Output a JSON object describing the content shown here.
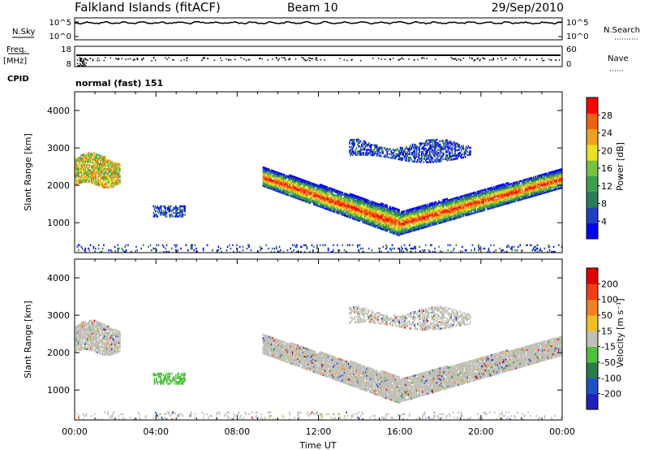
{
  "header": {
    "station": "Falkland Islands (fitACF)",
    "beam": "Beam 10",
    "date": "29/Sep/2010"
  },
  "colors": {
    "power": [
      "#0000ff",
      "#2040c0",
      "#2e7a5a",
      "#3aa050",
      "#78c040",
      "#e8e020",
      "#f0a020",
      "#f06010",
      "#ff0000"
    ],
    "velocity": [
      "#2020c0",
      "#2050c8",
      "#2a7a4a",
      "#50c040",
      "#c0c0b8",
      "#f0c020",
      "#f08020",
      "#f04010",
      "#e00000"
    ]
  },
  "chart_data": [
    {
      "type": "line",
      "panel": "noise",
      "left_label": "N.Sky",
      "right_label": "N.Search",
      "left_ticks": [
        "10^5",
        "10^0"
      ],
      "right_ticks": [
        "10^5",
        "10^0"
      ],
      "xlim": [
        "00:00",
        "24:00"
      ]
    },
    {
      "type": "line",
      "panel": "frequency",
      "left_label_1": "Freq.",
      "left_label_2": "[MHz]",
      "left_ticks": [
        "18",
        "8"
      ],
      "right_label": "Nave",
      "right_ticks": [
        "60",
        "0"
      ],
      "cpid_label": "CPID",
      "mode_text": "normal (fast) 151"
    },
    {
      "type": "heatmap",
      "panel": "power",
      "ylabel": "Slant Range [km]",
      "yticks": [
        "4000",
        "3000",
        "2000",
        "1000"
      ],
      "ylim": [
        200,
        4500
      ],
      "xlim": [
        0,
        24
      ],
      "colorbar_label": "Power [dB]",
      "colorbar_ticks": [
        "28",
        "24",
        "20",
        "16",
        "12",
        "8",
        "4"
      ]
    },
    {
      "type": "heatmap",
      "panel": "velocity",
      "ylabel": "Slant Range [km]",
      "yticks": [
        "4000",
        "3000",
        "2000",
        "1000"
      ],
      "ylim": [
        200,
        4500
      ],
      "xlim": [
        0,
        24
      ],
      "colorbar_label": "Velocity [m s⁻¹]",
      "colorbar_ticks": [
        "200",
        "100",
        "50",
        "15",
        "-15",
        "-50",
        "-100",
        "-200"
      ]
    }
  ],
  "xaxis": {
    "ticks": [
      "00:00",
      "04:00",
      "08:00",
      "12:00",
      "16:00",
      "20:00",
      "00:00"
    ],
    "label": "Time UT"
  }
}
